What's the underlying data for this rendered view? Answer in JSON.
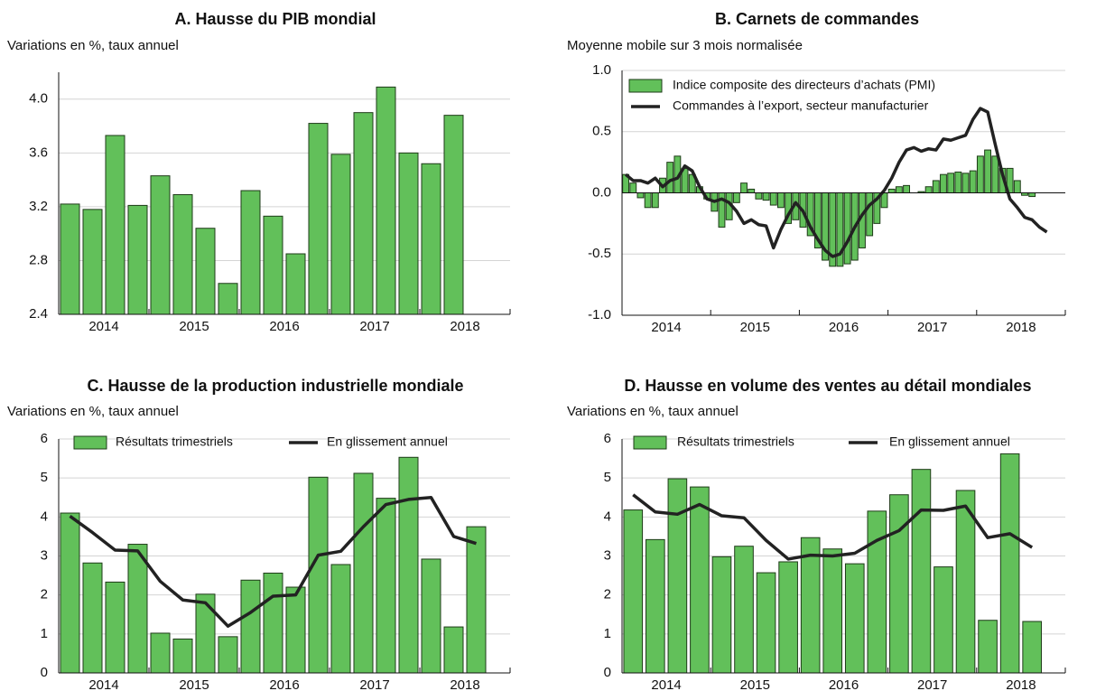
{
  "chart_data": [
    {
      "type": "bar",
      "title": "A. Hausse du PIB mondial",
      "subtitle": "Variations en %, taux annuel",
      "x_labels": [
        "2014",
        "2015",
        "2016",
        "2017",
        "2018"
      ],
      "values": [
        3.22,
        3.18,
        3.73,
        3.21,
        3.43,
        3.29,
        3.04,
        2.63,
        3.32,
        3.13,
        2.85,
        3.82,
        3.59,
        3.9,
        4.09,
        3.6,
        3.52,
        3.88
      ],
      "color": "#62c05a",
      "ylim": [
        2.4,
        4.2
      ],
      "yticks": [
        2.4,
        2.8,
        3.2,
        3.6,
        {
          "value": 4,
          "label": "4.0"
        }
      ],
      "grid": true
    },
    {
      "type": "combo",
      "title": "B. Carnets de commandes",
      "subtitle": "Moyenne mobile sur 3 mois normalisée",
      "x_labels": [
        "2014",
        "2015",
        "2016",
        "2017",
        "2018"
      ],
      "series": [
        {
          "name": "Indice composite des directeurs d’achats (PMI)",
          "type": "bar",
          "color": "#62c05a",
          "values": [
            0.15,
            0.08,
            -0.04,
            -0.12,
            -0.12,
            0.12,
            0.25,
            0.3,
            0.2,
            0.15,
            0.05,
            -0.05,
            -0.15,
            -0.28,
            -0.22,
            -0.08,
            0.08,
            0.03,
            -0.05,
            -0.06,
            -0.1,
            -0.12,
            -0.25,
            -0.22,
            -0.28,
            -0.35,
            -0.45,
            -0.55,
            -0.6,
            -0.6,
            -0.58,
            -0.55,
            -0.45,
            -0.35,
            -0.25,
            -0.12,
            0.03,
            0.05,
            0.06,
            0,
            0.01,
            0.05,
            0.1,
            0.15,
            0.16,
            0.17,
            0.16,
            0.18,
            0.3,
            0.35,
            0.3,
            0.2,
            0.2,
            0.1,
            -0.02,
            -0.03
          ]
        },
        {
          "name": "Commandes à l’export, secteur manufacturier",
          "type": "line",
          "color": "#222222",
          "values": [
            0.15,
            0.1,
            0.1,
            0.08,
            0.12,
            0.05,
            0.1,
            0.12,
            0.22,
            0.18,
            0.05,
            -0.05,
            -0.07,
            -0.05,
            -0.08,
            -0.15,
            -0.25,
            -0.22,
            -0.26,
            -0.27,
            -0.45,
            -0.3,
            -0.18,
            -0.08,
            -0.15,
            -0.28,
            -0.38,
            -0.47,
            -0.52,
            -0.5,
            -0.4,
            -0.28,
            -0.18,
            -0.1,
            -0.05,
            0.02,
            0.12,
            0.25,
            0.35,
            0.37,
            0.34,
            0.36,
            0.35,
            0.44,
            0.43,
            0.45,
            0.47,
            0.6,
            0.69,
            0.66,
            0.4,
            0.15,
            -0.05,
            -0.12,
            -0.2,
            -0.22,
            -0.28,
            -0.32
          ]
        }
      ],
      "ylim": [
        -1,
        1
      ],
      "yticks": [
        {
          "value": -1,
          "label": "-1.0"
        },
        -0.5,
        {
          "value": 0,
          "label": "0.0"
        },
        0.5,
        {
          "value": 1,
          "label": "1.0"
        }
      ],
      "grid": true
    },
    {
      "type": "combo",
      "title": "C. Hausse de la production industrielle mondiale",
      "subtitle": "Variations en %, taux annuel",
      "x_labels": [
        "2014",
        "2015",
        "2016",
        "2017",
        "2018"
      ],
      "series": [
        {
          "name": "Résultats trimestriels",
          "type": "bar",
          "color": "#62c05a",
          "values": [
            4.1,
            2.82,
            2.33,
            3.3,
            1.02,
            0.87,
            2.02,
            0.93,
            2.38,
            2.56,
            2.2,
            5.02,
            2.78,
            5.12,
            4.48,
            5.53,
            2.92,
            1.18,
            3.75
          ]
        },
        {
          "name": "En glissement annuel",
          "type": "line",
          "color": "#222222",
          "values": [
            4.02,
            3.6,
            3.15,
            3.13,
            2.35,
            1.87,
            1.8,
            1.2,
            1.55,
            1.97,
            2,
            3.02,
            3.12,
            3.75,
            4.32,
            4.45,
            4.5,
            3.5,
            3.32
          ]
        }
      ],
      "ylim": [
        0,
        6
      ],
      "yticks": [
        0,
        1,
        2,
        3,
        4,
        5,
        6
      ],
      "grid": true
    },
    {
      "type": "combo",
      "title": "D. Hausse en volume des ventes au détail mondiales",
      "subtitle": "Variations en %, taux annuel",
      "x_labels": [
        "2014",
        "2015",
        "2016",
        "2017",
        "2018"
      ],
      "series": [
        {
          "name": "Résultats trimestriels",
          "type": "bar",
          "color": "#62c05a",
          "values": [
            4.18,
            3.42,
            4.98,
            4.77,
            2.98,
            3.25,
            2.57,
            2.85,
            3.47,
            3.18,
            2.8,
            4.15,
            4.57,
            5.22,
            2.72,
            4.68,
            1.35,
            5.62,
            1.32
          ]
        },
        {
          "name": "En glissement annuel",
          "type": "line",
          "color": "#222222",
          "values": [
            4.57,
            4.13,
            4.07,
            4.32,
            4.03,
            3.98,
            3.4,
            2.92,
            3.02,
            3,
            3.07,
            3.4,
            3.65,
            4.18,
            4.17,
            4.28,
            3.47,
            3.57,
            3.22
          ]
        }
      ],
      "ylim": [
        0,
        6
      ],
      "yticks": [
        0,
        1,
        2,
        3,
        4,
        5,
        6
      ],
      "grid": true
    }
  ]
}
